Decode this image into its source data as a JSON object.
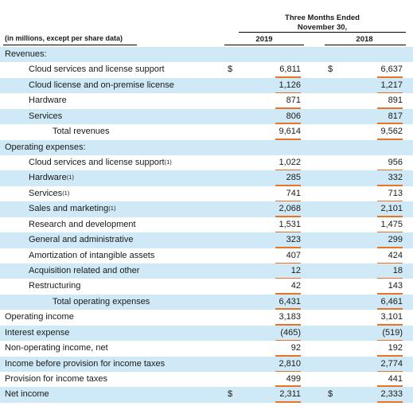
{
  "header": {
    "period_line1": "Three Months Ended",
    "period_line2": "November 30,",
    "unit_label": "(in millions, except per share data)",
    "year_1": "2019",
    "year_2": "2018"
  },
  "accent_color": "#e8742a",
  "shade_color": "#cfe9f6",
  "rows": [
    {
      "label": "Revenues:"
    },
    {
      "label": "Cloud services and license support",
      "currency_1": "$",
      "value_1": "6,811",
      "currency_2": "$",
      "value_2": "6,637"
    },
    {
      "label": "Cloud license and on-premise license",
      "value_1": "1,126",
      "value_2": "1,217"
    },
    {
      "label": "Hardware",
      "value_1": "871",
      "value_2": "891"
    },
    {
      "label": "Services",
      "value_1": "806",
      "value_2": "817"
    },
    {
      "label": "Total revenues",
      "value_1": "9,614",
      "value_2": "9,562"
    },
    {
      "label": "Operating expenses:"
    },
    {
      "label": "Cloud services and license support",
      "footnote": "(1)",
      "value_1": "1,022",
      "value_2": "956"
    },
    {
      "label": "Hardware",
      "footnote": "(1)",
      "value_1": "285",
      "value_2": "332"
    },
    {
      "label": "Services",
      "footnote": "(1)",
      "value_1": "741",
      "value_2": "713"
    },
    {
      "label": "Sales and marketing",
      "footnote": "(1)",
      "value_1": "2,068",
      "value_2": "2,101"
    },
    {
      "label": "Research and development",
      "value_1": "1,531",
      "value_2": "1,475"
    },
    {
      "label": "General and administrative",
      "value_1": "323",
      "value_2": "299"
    },
    {
      "label": "Amortization of intangible assets",
      "value_1": "407",
      "value_2": "424"
    },
    {
      "label": "Acquisition related and other",
      "value_1": "12",
      "value_2": "18"
    },
    {
      "label": "Restructuring",
      "value_1": "42",
      "value_2": "143"
    },
    {
      "label": "Total operating expenses",
      "value_1": "6,431",
      "value_2": "6,461"
    },
    {
      "label": "Operating income",
      "value_1": "3,183",
      "value_2": "3,101"
    },
    {
      "label": "Interest expense",
      "value_1": "(465)",
      "value_2": "(519)"
    },
    {
      "label": "Non-operating income, net",
      "value_1": "92",
      "value_2": "192"
    },
    {
      "label": "Income before provision for income taxes",
      "value_1": "2,810",
      "value_2": "2,774"
    },
    {
      "label": "Provision for income taxes",
      "value_1": "499",
      "value_2": "441"
    },
    {
      "label": "Net income",
      "currency_1": "$",
      "value_1": "2,311",
      "currency_2": "$",
      "value_2": "2,333"
    }
  ]
}
